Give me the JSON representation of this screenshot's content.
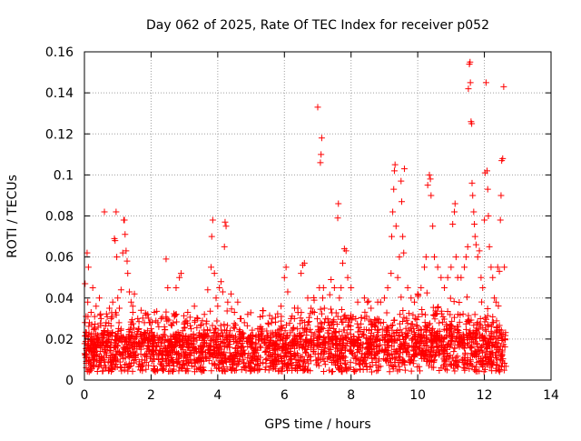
{
  "chart_data": {
    "type": "scatter",
    "title": "Day 062 of 2025, Rate Of TEC Index for receiver p052",
    "xlabel": "GPS time / hours",
    "ylabel": "ROTI / TECUs",
    "xlim": [
      0,
      14
    ],
    "ylim": [
      0,
      0.16
    ],
    "x_ticks": [
      0,
      2,
      4,
      6,
      8,
      10,
      12,
      14
    ],
    "x_tick_labels": [
      "0",
      "2",
      "4",
      "6",
      "8",
      "10",
      "12",
      "14"
    ],
    "y_ticks": [
      0,
      0.02,
      0.04,
      0.06,
      0.08,
      0.1,
      0.12,
      0.14,
      0.16
    ],
    "y_tick_labels": [
      "0",
      "0.02",
      "0.04",
      "0.06",
      "0.08",
      "0.1",
      "0.12",
      "0.14",
      "0.16"
    ],
    "grid": true,
    "marker": "+",
    "marker_color": "#ff0000",
    "series": [
      {
        "name": "ROTI",
        "points": [
          [
            0.02,
            0.047
          ],
          [
            0.05,
            0.031
          ],
          [
            0.08,
            0.062
          ],
          [
            0.1,
            0.038
          ],
          [
            0.12,
            0.055
          ],
          [
            0.15,
            0.028
          ],
          [
            0.2,
            0.033
          ],
          [
            0.25,
            0.045
          ],
          [
            0.3,
            0.025
          ],
          [
            0.35,
            0.036
          ],
          [
            0.4,
            0.022
          ],
          [
            0.45,
            0.04
          ],
          [
            0.5,
            0.03
          ],
          [
            0.55,
            0.018
          ],
          [
            0.6,
            0.082
          ],
          [
            0.65,
            0.028
          ],
          [
            0.7,
            0.024
          ],
          [
            0.75,
            0.035
          ],
          [
            0.8,
            0.03
          ],
          [
            0.85,
            0.038
          ],
          [
            0.9,
            0.069
          ],
          [
            0.92,
            0.068
          ],
          [
            0.95,
            0.082
          ],
          [
            0.97,
            0.06
          ],
          [
            1.0,
            0.04
          ],
          [
            1.05,
            0.035
          ],
          [
            1.1,
            0.044
          ],
          [
            1.15,
            0.062
          ],
          [
            1.18,
            0.078
          ],
          [
            1.2,
            0.078
          ],
          [
            1.22,
            0.071
          ],
          [
            1.25,
            0.063
          ],
          [
            1.28,
            0.058
          ],
          [
            1.3,
            0.052
          ],
          [
            1.35,
            0.043
          ],
          [
            1.4,
            0.038
          ],
          [
            1.45,
            0.036
          ],
          [
            1.5,
            0.042
          ],
          [
            1.6,
            0.03
          ],
          [
            1.7,
            0.034
          ],
          [
            1.8,
            0.028
          ],
          [
            1.9,
            0.032
          ],
          [
            2.0,
            0.025
          ],
          [
            2.1,
            0.033
          ],
          [
            2.2,
            0.028
          ],
          [
            2.3,
            0.03
          ],
          [
            2.4,
            0.026
          ],
          [
            2.45,
            0.059
          ],
          [
            2.5,
            0.045
          ],
          [
            2.6,
            0.027
          ],
          [
            2.7,
            0.031
          ],
          [
            2.75,
            0.045
          ],
          [
            2.85,
            0.05
          ],
          [
            2.9,
            0.052
          ],
          [
            3.0,
            0.028
          ],
          [
            3.1,
            0.033
          ],
          [
            3.2,
            0.025
          ],
          [
            3.3,
            0.036
          ],
          [
            3.4,
            0.03
          ],
          [
            3.5,
            0.027
          ],
          [
            3.6,
            0.032
          ],
          [
            3.7,
            0.044
          ],
          [
            3.8,
            0.055
          ],
          [
            3.82,
            0.07
          ],
          [
            3.85,
            0.078
          ],
          [
            3.9,
            0.052
          ],
          [
            3.95,
            0.04
          ],
          [
            4.0,
            0.036
          ],
          [
            4.05,
            0.045
          ],
          [
            4.1,
            0.048
          ],
          [
            4.15,
            0.043
          ],
          [
            4.2,
            0.065
          ],
          [
            4.22,
            0.077
          ],
          [
            4.25,
            0.075
          ],
          [
            4.3,
            0.038
          ],
          [
            4.4,
            0.042
          ],
          [
            4.5,
            0.033
          ],
          [
            4.6,
            0.038
          ],
          [
            4.7,
            0.03
          ],
          [
            4.8,
            0.028
          ],
          [
            4.9,
            0.032
          ],
          [
            5.0,
            0.022
          ],
          [
            5.2,
            0.025
          ],
          [
            5.4,
            0.02
          ],
          [
            5.6,
            0.023
          ],
          [
            5.8,
            0.024
          ],
          [
            5.9,
            0.036
          ],
          [
            6.0,
            0.05
          ],
          [
            6.05,
            0.055
          ],
          [
            6.1,
            0.043
          ],
          [
            6.2,
            0.03
          ],
          [
            6.3,
            0.03
          ],
          [
            6.4,
            0.035
          ],
          [
            6.5,
            0.052
          ],
          [
            6.55,
            0.056
          ],
          [
            6.6,
            0.057
          ],
          [
            6.7,
            0.04
          ],
          [
            6.8,
            0.035
          ],
          [
            6.9,
            0.033
          ],
          [
            7.0,
            0.133
          ],
          [
            7.05,
            0.045
          ],
          [
            7.08,
            0.106
          ],
          [
            7.1,
            0.11
          ],
          [
            7.12,
            0.118
          ],
          [
            7.15,
            0.04
          ],
          [
            7.2,
            0.035
          ],
          [
            7.3,
            0.03
          ],
          [
            7.4,
            0.049
          ],
          [
            7.5,
            0.045
          ],
          [
            7.6,
            0.079
          ],
          [
            7.62,
            0.086
          ],
          [
            7.65,
            0.04
          ],
          [
            7.7,
            0.045
          ],
          [
            7.75,
            0.057
          ],
          [
            7.8,
            0.064
          ],
          [
            7.85,
            0.063
          ],
          [
            7.9,
            0.05
          ],
          [
            8.0,
            0.045
          ],
          [
            8.2,
            0.038
          ],
          [
            8.4,
            0.04
          ],
          [
            8.6,
            0.035
          ],
          [
            8.8,
            0.038
          ],
          [
            9.0,
            0.04
          ],
          [
            9.1,
            0.045
          ],
          [
            9.2,
            0.052
          ],
          [
            9.22,
            0.07
          ],
          [
            9.25,
            0.082
          ],
          [
            9.28,
            0.093
          ],
          [
            9.3,
            0.102
          ],
          [
            9.32,
            0.105
          ],
          [
            9.35,
            0.075
          ],
          [
            9.4,
            0.05
          ],
          [
            9.45,
            0.06
          ],
          [
            9.5,
            0.097
          ],
          [
            9.52,
            0.087
          ],
          [
            9.55,
            0.07
          ],
          [
            9.58,
            0.062
          ],
          [
            9.6,
            0.103
          ],
          [
            9.7,
            0.045
          ],
          [
            9.8,
            0.04
          ],
          [
            9.9,
            0.038
          ],
          [
            10.0,
            0.042
          ],
          [
            10.1,
            0.045
          ],
          [
            10.2,
            0.055
          ],
          [
            10.25,
            0.06
          ],
          [
            10.3,
            0.095
          ],
          [
            10.35,
            0.1
          ],
          [
            10.38,
            0.098
          ],
          [
            10.4,
            0.09
          ],
          [
            10.45,
            0.075
          ],
          [
            10.5,
            0.06
          ],
          [
            10.6,
            0.055
          ],
          [
            10.7,
            0.05
          ],
          [
            10.8,
            0.045
          ],
          [
            10.9,
            0.05
          ],
          [
            11.0,
            0.055
          ],
          [
            11.05,
            0.076
          ],
          [
            11.1,
            0.082
          ],
          [
            11.12,
            0.086
          ],
          [
            11.15,
            0.06
          ],
          [
            11.2,
            0.05
          ],
          [
            11.3,
            0.05
          ],
          [
            11.4,
            0.055
          ],
          [
            11.45,
            0.06
          ],
          [
            11.5,
            0.065
          ],
          [
            11.52,
            0.142
          ],
          [
            11.55,
            0.154
          ],
          [
            11.57,
            0.155
          ],
          [
            11.58,
            0.145
          ],
          [
            11.6,
            0.126
          ],
          [
            11.62,
            0.125
          ],
          [
            11.63,
            0.096
          ],
          [
            11.65,
            0.09
          ],
          [
            11.68,
            0.082
          ],
          [
            11.7,
            0.076
          ],
          [
            11.72,
            0.07
          ],
          [
            11.75,
            0.066
          ],
          [
            11.8,
            0.06
          ],
          [
            11.85,
            0.063
          ],
          [
            11.9,
            0.05
          ],
          [
            11.95,
            0.045
          ],
          [
            12.0,
            0.078
          ],
          [
            12.02,
            0.101
          ],
          [
            12.05,
            0.145
          ],
          [
            12.08,
            0.102
          ],
          [
            12.1,
            0.093
          ],
          [
            12.12,
            0.08
          ],
          [
            12.15,
            0.065
          ],
          [
            12.2,
            0.055
          ],
          [
            12.25,
            0.05
          ],
          [
            12.3,
            0.04
          ],
          [
            12.35,
            0.038
          ],
          [
            12.4,
            0.055
          ],
          [
            12.45,
            0.053
          ],
          [
            12.48,
            0.078
          ],
          [
            12.5,
            0.09
          ],
          [
            12.52,
            0.107
          ],
          [
            12.55,
            0.108
          ],
          [
            12.58,
            0.143
          ],
          [
            12.6,
            0.055
          ]
        ]
      }
    ]
  }
}
